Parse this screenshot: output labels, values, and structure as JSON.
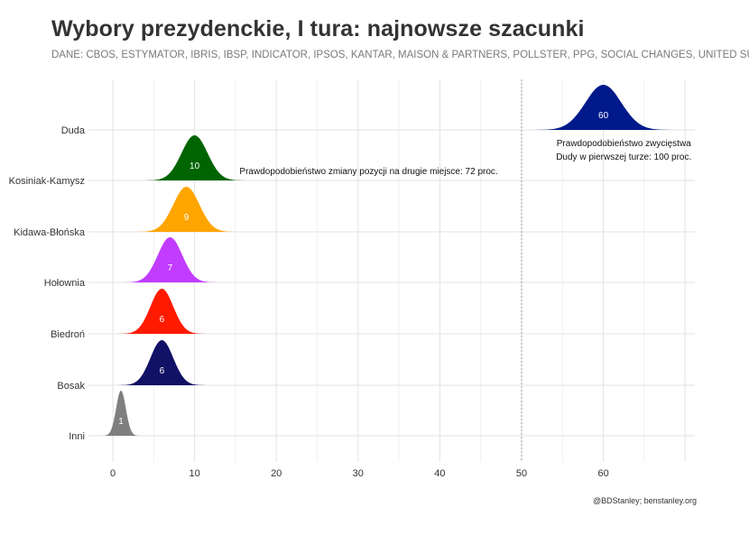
{
  "title": "Wybory prezydenckie, I tura: najnowsze szacunki",
  "subtitle": "DANE: CBOS, ESTYMATOR, IBRIS, IBSP, INDICATOR, IPSOS, KANTAR, MAISON & PARTNERS, POLLSTER, PPG, SOCIAL CHANGES, UNITED SURVEY",
  "caption": "@BDStanley; benstanley.org",
  "chart_data": {
    "type": "area",
    "title": "Wybory prezydenckie, I tura: najnowsze szacunki",
    "xlim": [
      -3,
      70
    ],
    "x_ticks": [
      0,
      10,
      20,
      30,
      40,
      50,
      60
    ],
    "grid": true,
    "legend": "none",
    "reference_line": {
      "x": 50,
      "style": "dashed"
    },
    "series": [
      {
        "name": "Duda",
        "mean": 60,
        "label": "60",
        "sd": 2.2,
        "color": "#001a8c"
      },
      {
        "name": "Kosiniak-Kamysz",
        "mean": 10,
        "label": "10",
        "sd": 1.6,
        "color": "#006400"
      },
      {
        "name": "Kidawa-Błońska",
        "mean": 9,
        "label": "9",
        "sd": 1.6,
        "color": "#ffa500"
      },
      {
        "name": "Hołownia",
        "mean": 7,
        "label": "7",
        "sd": 1.5,
        "color": "#c13cff"
      },
      {
        "name": "Biedroń",
        "mean": 6,
        "label": "6",
        "sd": 1.4,
        "color": "#ff1a00"
      },
      {
        "name": "Bosak",
        "mean": 6,
        "label": "6",
        "sd": 1.4,
        "color": "#111166"
      },
      {
        "name": "Inni",
        "mean": 1,
        "label": "1",
        "sd": 0.6,
        "color": "#7f7f7f"
      }
    ],
    "annotations": [
      {
        "text": "Prawdopodobieństwo zmiany pozycji na drugie miejsce: 72 proc.",
        "x": 15.5,
        "row": "Kosiniak-Kamysz"
      },
      {
        "text": "Prawdopodobieństwo zwycięstwa",
        "x": 62.5,
        "row": "Duda"
      },
      {
        "text": "Dudy w pierwszej turze: 100 proc.",
        "x": 62.5,
        "row": "Duda"
      }
    ]
  }
}
